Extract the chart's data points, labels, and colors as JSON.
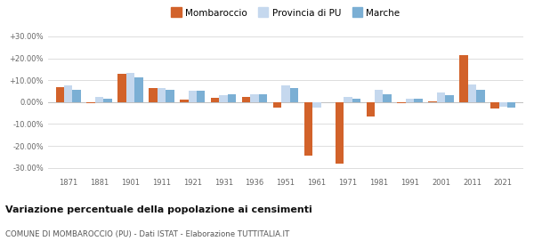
{
  "years": [
    1871,
    1881,
    1901,
    1911,
    1921,
    1931,
    1936,
    1951,
    1961,
    1971,
    1981,
    1991,
    2001,
    2011,
    2021
  ],
  "mombaroccio": [
    7.0,
    -0.3,
    13.0,
    6.5,
    1.0,
    2.0,
    2.5,
    -2.5,
    -24.5,
    -28.0,
    -6.5,
    -0.5,
    0.5,
    21.5,
    -3.0
  ],
  "provincia_pu": [
    7.5,
    2.5,
    13.5,
    6.5,
    5.0,
    3.0,
    3.5,
    7.5,
    -2.5,
    2.5,
    5.5,
    1.5,
    4.5,
    8.0,
    -2.0
  ],
  "marche": [
    5.5,
    1.5,
    11.5,
    5.5,
    5.0,
    3.5,
    3.5,
    6.5,
    0.0,
    1.5,
    3.5,
    1.5,
    3.0,
    5.5,
    -2.5
  ],
  "color_mombaroccio": "#D2622A",
  "color_provincia": "#C5D8EE",
  "color_marche": "#7BAFD4",
  "title": "Variazione percentuale della popolazione ai censimenti",
  "subtitle": "COMUNE DI MOMBAROCCIO (PU) - Dati ISTAT - Elaborazione TUTTITALIA.IT",
  "ylim": [
    -33,
    33
  ],
  "yticks": [
    -30,
    -20,
    -10,
    0,
    10,
    20,
    30
  ],
  "ytick_labels": [
    "-30.00%",
    "-20.00%",
    "-10.00%",
    "0.00%",
    "+10.00%",
    "+20.00%",
    "+30.00%"
  ],
  "background_color": "#ffffff",
  "grid_color": "#d8d8d8"
}
